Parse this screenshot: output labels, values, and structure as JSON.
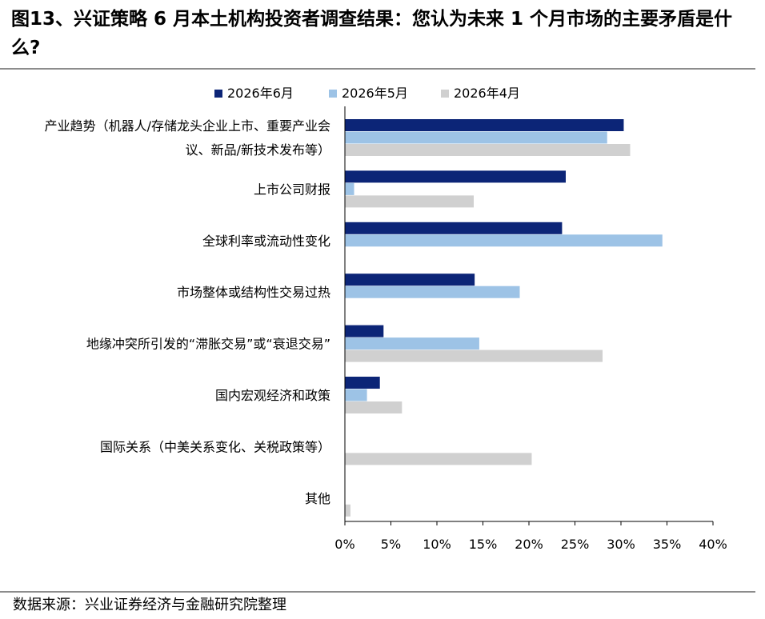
{
  "title": "图13、兴证策略 6 月本土机构投资者调查结果：您认为未来 1 个月市场的主要矛盾是什么?",
  "source": "数据来源：兴业证券经济与金融研究院整理",
  "chart_data": {
    "type": "bar",
    "orientation": "horizontal",
    "categories": [
      [
        "产业趋势（机器人/存储龙头企业上市、重要产业会",
        "议、新品/新技术发布等）"
      ],
      [
        "上市公司财报"
      ],
      [
        "全球利率或流动性变化"
      ],
      [
        "市场整体或结构性交易过热"
      ],
      [
        "地缘冲突所引发的“滞胀交易”或“衰退交易”"
      ],
      [
        "国内宏观经济和政策"
      ],
      [
        "国际关系（中美关系变化、关税政策等）"
      ],
      [
        "其他"
      ]
    ],
    "series": [
      {
        "name": "2026年6月",
        "color": "#0c2577",
        "values": [
          30.3,
          24.0,
          23.6,
          14.1,
          4.2,
          3.8,
          0,
          0
        ]
      },
      {
        "name": "2026年5月",
        "color": "#9dc3e6",
        "values": [
          28.5,
          1.0,
          34.5,
          19.0,
          14.6,
          2.4,
          0,
          0
        ]
      },
      {
        "name": "2026年4月",
        "color": "#d0d0d0",
        "values": [
          31.0,
          14.0,
          0,
          0,
          28.0,
          6.2,
          20.3,
          0.6
        ]
      }
    ],
    "xlim": [
      0,
      40
    ],
    "xticks": [
      "0%",
      "5%",
      "10%",
      "15%",
      "20%",
      "25%",
      "30%",
      "35%",
      "40%"
    ],
    "legend_position": "top",
    "grid": false
  }
}
